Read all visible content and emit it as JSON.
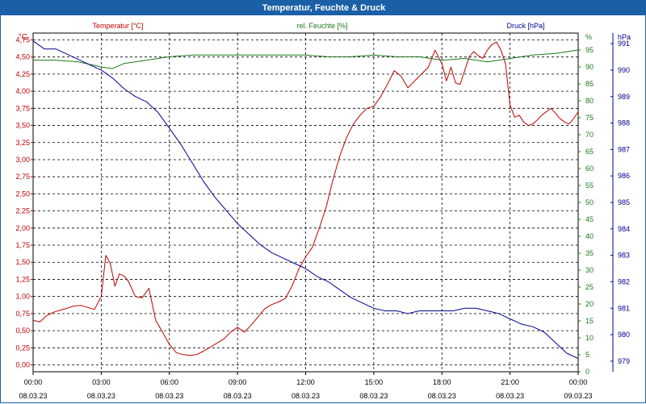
{
  "window": {
    "title": "Temperatur, Feuchte & Druck"
  },
  "colors": {
    "title_bg": "#1b5fa6",
    "temperature": "#c00000",
    "humidity": "#1a7a1a",
    "pressure": "#000090",
    "grid": "#000000"
  },
  "chart_data": {
    "type": "line",
    "title": "Temperatur, Feuchte & Druck",
    "grid": true,
    "x_ticks": [
      {
        "time": "00:00",
        "date": "08.03.23",
        "h": 0
      },
      {
        "time": "03:00",
        "date": "08.03.23",
        "h": 3
      },
      {
        "time": "06:00",
        "date": "08.03.23",
        "h": 6
      },
      {
        "time": "09:00",
        "date": "08.03.23",
        "h": 9
      },
      {
        "time": "12:00",
        "date": "08.03.23",
        "h": 12
      },
      {
        "time": "15:00",
        "date": "08.03.23",
        "h": 15
      },
      {
        "time": "18:00",
        "date": "08.03.23",
        "h": 18
      },
      {
        "time": "21:00",
        "date": "08.03.23",
        "h": 21
      },
      {
        "time": "00:00",
        "date": "09.03.23",
        "h": 24
      }
    ],
    "axes": {
      "temperature": {
        "label": "Temperatur [°C]",
        "unit": "°C",
        "range": [
          -0.1,
          4.85
        ],
        "ticks": [
          "0,00",
          "0,25",
          "0,50",
          "0,75",
          "1,00",
          "1,25",
          "1,50",
          "1,75",
          "2,00",
          "2,25",
          "2,50",
          "2,75",
          "3,00",
          "3,25",
          "3,50",
          "3,75",
          "4,00",
          "4,25",
          "4,50",
          "4,75"
        ]
      },
      "humidity": {
        "label": "rel. Feuchte [%]",
        "unit": "%",
        "range": [
          0,
          100
        ],
        "ticks": [
          "0",
          "5",
          "10",
          "15",
          "20",
          "25",
          "30",
          "35",
          "40",
          "45",
          "50",
          "55",
          "60",
          "65",
          "70",
          "75",
          "80",
          "85",
          "90",
          "95"
        ]
      },
      "pressure": {
        "label": "Druck [hPa]",
        "unit": "hPa",
        "range": [
          978.6,
          991.4
        ],
        "ticks": [
          "979",
          "980",
          "981",
          "982",
          "983",
          "984",
          "985",
          "986",
          "987",
          "988",
          "989",
          "990",
          "991"
        ]
      }
    },
    "series": [
      {
        "name": "Temperatur [°C]",
        "axis": "temperature",
        "x": [
          0,
          0.3,
          0.6,
          0.9,
          1.2,
          1.5,
          1.8,
          2.1,
          2.4,
          2.7,
          3.0,
          3.2,
          3.4,
          3.6,
          3.8,
          4.0,
          4.2,
          4.5,
          4.8,
          5.1,
          5.4,
          5.7,
          6.0,
          6.3,
          6.6,
          6.9,
          7.2,
          7.5,
          7.8,
          8.1,
          8.4,
          8.7,
          9.0,
          9.3,
          9.6,
          9.9,
          10.2,
          10.5,
          10.8,
          11.1,
          11.4,
          11.7,
          12.0,
          12.3,
          12.6,
          12.9,
          13.2,
          13.5,
          13.8,
          14.1,
          14.4,
          14.7,
          15.0,
          15.3,
          15.6,
          15.9,
          16.2,
          16.5,
          16.8,
          17.1,
          17.4,
          17.7,
          18.0,
          18.2,
          18.4,
          18.6,
          18.8,
          19.0,
          19.2,
          19.4,
          19.6,
          19.8,
          20.0,
          20.2,
          20.4,
          20.6,
          20.8,
          21.0,
          21.2,
          21.4,
          21.6,
          21.8,
          22.0,
          22.2,
          22.4,
          22.6,
          22.8,
          23.0,
          23.2,
          23.4,
          23.6,
          23.8,
          24.0
        ],
        "values": [
          0.65,
          0.63,
          0.72,
          0.77,
          0.8,
          0.83,
          0.86,
          0.87,
          0.84,
          0.81,
          1.0,
          1.6,
          1.48,
          1.15,
          1.33,
          1.3,
          1.22,
          1.0,
          0.98,
          1.12,
          0.65,
          0.48,
          0.3,
          0.18,
          0.15,
          0.14,
          0.15,
          0.2,
          0.26,
          0.32,
          0.38,
          0.48,
          0.55,
          0.48,
          0.58,
          0.7,
          0.82,
          0.88,
          0.92,
          0.97,
          1.15,
          1.4,
          1.58,
          1.72,
          2.0,
          2.3,
          2.7,
          3.05,
          3.32,
          3.52,
          3.65,
          3.75,
          3.78,
          3.92,
          4.1,
          4.3,
          4.22,
          4.05,
          4.15,
          4.25,
          4.35,
          4.6,
          4.4,
          4.15,
          4.35,
          4.12,
          4.1,
          4.3,
          4.5,
          4.58,
          4.52,
          4.48,
          4.6,
          4.68,
          4.72,
          4.6,
          4.4,
          3.8,
          3.62,
          3.65,
          3.55,
          3.5,
          3.52,
          3.58,
          3.65,
          3.7,
          3.75,
          3.68,
          3.6,
          3.55,
          3.52,
          3.6,
          3.7
        ]
      },
      {
        "name": "rel. Feuchte [%]",
        "axis": "humidity",
        "x": [
          0,
          1,
          2,
          3,
          3.5,
          4,
          5,
          6,
          7,
          8,
          9,
          10,
          11,
          12,
          13,
          14,
          15,
          16,
          17,
          18,
          19,
          20,
          21,
          22,
          23,
          24
        ],
        "values": [
          92,
          92,
          91.5,
          90,
          89.5,
          91,
          92,
          93,
          93.5,
          93.5,
          93.5,
          93.5,
          93.5,
          93.5,
          93,
          93,
          93.5,
          93,
          93,
          92,
          92.5,
          91.5,
          92.5,
          93.5,
          94,
          95
        ]
      },
      {
        "name": "Druck [hPa]",
        "axis": "pressure",
        "x": [
          0,
          0.5,
          1,
          1.5,
          2,
          2.5,
          3,
          3.5,
          4,
          4.5,
          5,
          5.5,
          6,
          6.5,
          7,
          7.5,
          8,
          8.5,
          9,
          9.5,
          10,
          10.5,
          11,
          11.5,
          12,
          12.5,
          13,
          13.5,
          14,
          14.5,
          15,
          15.5,
          16,
          16.5,
          17,
          17.5,
          18,
          18.5,
          19,
          19.5,
          20,
          20.5,
          21,
          21.5,
          22,
          22.5,
          23,
          23.5,
          24
        ],
        "values": [
          991.1,
          990.8,
          990.8,
          990.6,
          990.4,
          990.2,
          990.0,
          989.7,
          989.3,
          989.0,
          988.8,
          988.4,
          987.8,
          987.2,
          986.5,
          985.8,
          985.2,
          984.7,
          984.2,
          983.8,
          983.4,
          983.1,
          982.9,
          982.7,
          982.5,
          982.2,
          982.0,
          981.7,
          981.4,
          981.2,
          981.0,
          980.9,
          980.9,
          980.8,
          980.9,
          980.9,
          980.9,
          980.9,
          981.0,
          981.0,
          980.9,
          980.8,
          980.6,
          980.4,
          980.3,
          980.1,
          979.7,
          979.3,
          979.1
        ]
      }
    ]
  }
}
